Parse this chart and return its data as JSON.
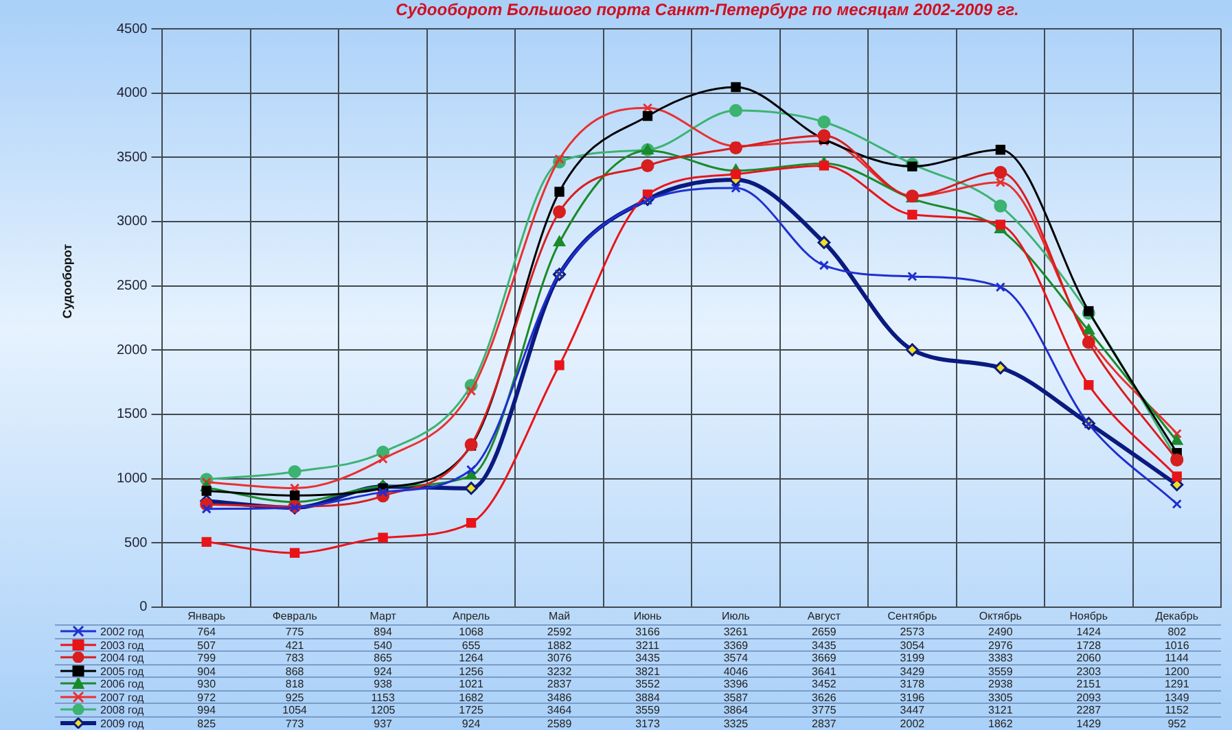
{
  "chart_data": {
    "type": "line",
    "title": "Судооборот Большого порта Санкт-Петербург по месяцам 2002-2009 гг.",
    "ylabel": "Судооборот",
    "categories": [
      "Январь",
      "Февраль",
      "Март",
      "Апрель",
      "Май",
      "Июнь",
      "Июль",
      "Август",
      "Сентябрь",
      "Октябрь",
      "Ноябрь",
      "Декабрь"
    ],
    "series": [
      {
        "name": "2002 год",
        "color": "#1f2fd0",
        "marker": "cross",
        "values": [
          764,
          775,
          894,
          1068,
          2592,
          3166,
          3261,
          2659,
          2573,
          2490,
          1424,
          802
        ]
      },
      {
        "name": "2003 год",
        "color": "#e8141a",
        "marker": "square",
        "values": [
          507,
          421,
          540,
          655,
          1882,
          3211,
          3369,
          3435,
          3054,
          2976,
          1728,
          1016
        ]
      },
      {
        "name": "2004 год",
        "color": "#d81e1e",
        "marker": "circle",
        "values": [
          799,
          783,
          865,
          1264,
          3076,
          3435,
          3574,
          3669,
          3199,
          3383,
          2060,
          1144
        ]
      },
      {
        "name": "2005 год",
        "color": "#000000",
        "marker": "square",
        "values": [
          904,
          868,
          924,
          1256,
          3232,
          3821,
          4046,
          3641,
          3429,
          3559,
          2303,
          1200
        ]
      },
      {
        "name": "2006 год",
        "color": "#1a8a2a",
        "marker": "triangle",
        "values": [
          930,
          818,
          938,
          1021,
          2837,
          3552,
          3396,
          3452,
          3178,
          2938,
          2151,
          1291
        ]
      },
      {
        "name": "2007 год",
        "color": "#e83030",
        "marker": "cross",
        "values": [
          972,
          925,
          1153,
          1682,
          3486,
          3884,
          3587,
          3626,
          3196,
          3305,
          2093,
          1349
        ]
      },
      {
        "name": "2008 год",
        "color": "#3cb371",
        "marker": "circle",
        "values": [
          994,
          1054,
          1205,
          1725,
          3464,
          3559,
          3864,
          3775,
          3447,
          3121,
          2287,
          1152
        ]
      },
      {
        "name": "2009 год",
        "color": "#0a1a80",
        "marker": "diamond",
        "values": [
          825,
          773,
          937,
          924,
          2589,
          3173,
          3325,
          2837,
          2002,
          1862,
          1429,
          952
        ]
      }
    ],
    "ylim": [
      0,
      4500
    ],
    "yticks": [
      0,
      500,
      1000,
      1500,
      2000,
      2500,
      3000,
      3500,
      4000,
      4500
    ],
    "grid": true,
    "legend": "bottom",
    "data_labels": true
  }
}
